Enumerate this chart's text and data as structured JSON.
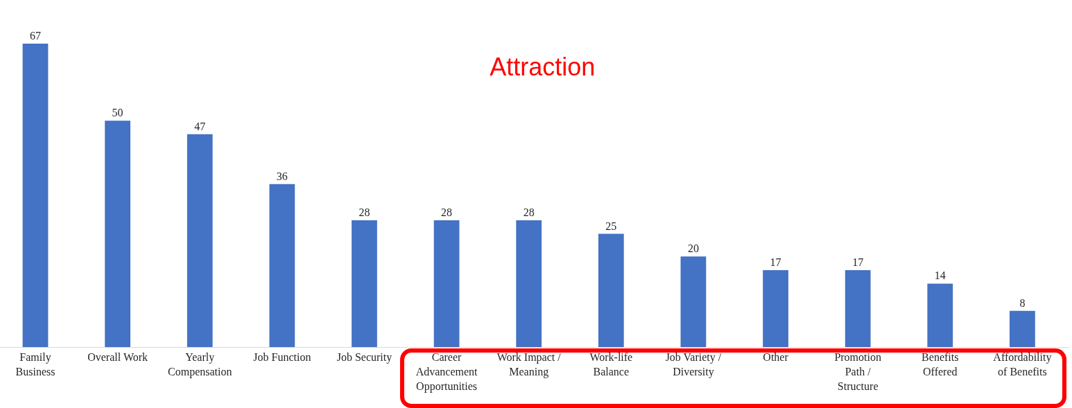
{
  "chart_data": {
    "type": "bar",
    "title": "Attraction",
    "categories": [
      "Family Business",
      "Overall Work",
      "Yearly Compensation",
      "Job Function",
      "Job Security",
      "Career Advancement Opportunities",
      "Work Impact / Meaning",
      "Work-life Balance",
      "Job Variety / Diversity",
      "Other",
      "Promotion Path / Structure",
      "Benefits Offered",
      "Affordability of Benefits"
    ],
    "values": [
      67,
      50,
      47,
      36,
      28,
      28,
      28,
      25,
      20,
      17,
      17,
      14,
      8
    ],
    "color": "#4472c4",
    "data_labels": true,
    "tick_labels": "x"
  }
}
